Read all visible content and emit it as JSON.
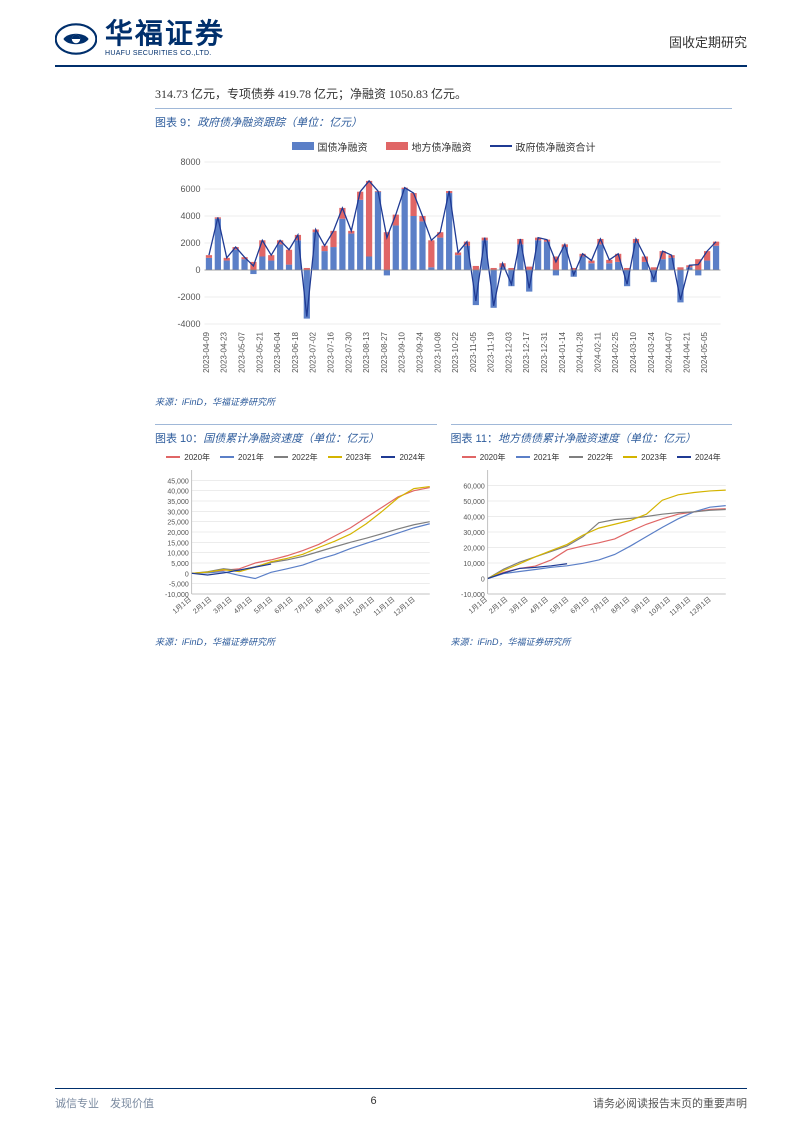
{
  "header": {
    "logo_cn": "华福证券",
    "logo_en": "HUAFU SECURITIES CO.,LTD.",
    "report_type": "固收定期研究"
  },
  "intro": "314.73 亿元，专项债券 419.78 亿元；净融资 1050.83 亿元。",
  "chart9": {
    "title_prefix": "图表 9：",
    "title": "政府债净融资跟踪（单位：亿元）",
    "legend": [
      {
        "label": "国债净融资",
        "color": "#5b7fc7",
        "type": "bar"
      },
      {
        "label": "地方债净融资",
        "color": "#e06666",
        "type": "bar"
      },
      {
        "label": "政府债净融资合计",
        "color": "#1f3a93",
        "type": "line"
      }
    ],
    "ylim": [
      -4000,
      8000
    ],
    "ytick_step": 2000,
    "yticks": [
      -4000,
      -2000,
      0,
      2000,
      4000,
      6000,
      8000
    ],
    "x_labels": [
      "2023-04-09",
      "2023-04-23",
      "2023-05-07",
      "2023-05-21",
      "2023-06-04",
      "2023-06-18",
      "2023-07-02",
      "2023-07-16",
      "2023-07-30",
      "2023-08-13",
      "2023-08-27",
      "2023-09-10",
      "2023-09-24",
      "2023-10-08",
      "2023-10-22",
      "2023-11-05",
      "2023-11-19",
      "2023-12-03",
      "2023-12-17",
      "2023-12-31",
      "2024-01-14",
      "2024-01-28",
      "2024-02-11",
      "2024-02-25",
      "2024-03-10",
      "2024-03-24",
      "2024-04-07",
      "2024-04-21",
      "2024-05-05"
    ],
    "series_a": [
      900,
      3800,
      700,
      1500,
      800,
      -300,
      1000,
      700,
      1900,
      400,
      2200,
      -3600,
      2800,
      1400,
      1700,
      3800,
      2700,
      5200,
      1000,
      5800,
      -400,
      3300,
      6000,
      4000,
      3600,
      200,
      2400,
      5700,
      1100,
      1800,
      -2600,
      2200,
      -2800,
      200,
      -1200,
      1900,
      -1600,
      2200,
      2100,
      -400,
      1700,
      -500,
      1000,
      500,
      1900,
      500,
      600,
      -1200,
      2000,
      600,
      -900,
      800,
      900,
      -2400,
      200,
      -400,
      700,
      1800
    ],
    "series_b": [
      200,
      100,
      200,
      200,
      150,
      600,
      1200,
      400,
      300,
      1100,
      400,
      150,
      200,
      400,
      1200,
      800,
      200,
      600,
      5600,
      50,
      2800,
      800,
      100,
      1700,
      400,
      2000,
      400,
      150,
      200,
      300,
      300,
      200,
      150,
      300,
      150,
      400,
      250,
      200,
      150,
      1000,
      200,
      150,
      200,
      200,
      400,
      250,
      600,
      150,
      300,
      400,
      200,
      600,
      200,
      200,
      150,
      800,
      700,
      300
    ],
    "grid_color": "#d9d9d9",
    "axis_color": "#666",
    "plot_bg": "#ffffff",
    "title_fontsize": 11,
    "tick_fontsize": 9
  },
  "chart10": {
    "title_prefix": "图表 10：",
    "title": "国债累计净融资速度（单位：亿元）",
    "ylim": [
      -10000,
      50000
    ],
    "ytick_step": 5000,
    "yticks": [
      -10000,
      -5000,
      0,
      5000,
      10000,
      15000,
      20000,
      25000,
      30000,
      35000,
      40000,
      45000
    ],
    "x_labels": [
      "1月1日",
      "2月1日",
      "3月1日",
      "4月1日",
      "5月1日",
      "6月1日",
      "7月1日",
      "8月1日",
      "9月1日",
      "10月1日",
      "11月1日",
      "12月1日"
    ],
    "legend": [
      {
        "label": "2020年",
        "color": "#e06666"
      },
      {
        "label": "2021年",
        "color": "#5b7fc7"
      },
      {
        "label": "2022年",
        "color": "#7f7f7f"
      },
      {
        "label": "2023年",
        "color": "#d4b400"
      },
      {
        "label": "2024年",
        "color": "#1f3a93"
      }
    ],
    "series": {
      "2020": [
        0,
        500,
        1500,
        2200,
        5000,
        6500,
        8500,
        11000,
        14000,
        18000,
        22000,
        27000,
        32000,
        37000,
        40000,
        41500
      ],
      "2021": [
        0,
        300,
        800,
        -1000,
        -2500,
        500,
        2200,
        4000,
        6800,
        9000,
        12000,
        14500,
        17000,
        19500,
        22000,
        24000
      ],
      "2022": [
        0,
        800,
        2200,
        1400,
        3200,
        5200,
        6500,
        8200,
        10500,
        12800,
        15000,
        17000,
        19200,
        21500,
        23500,
        25000
      ],
      "2023": [
        0,
        600,
        1800,
        800,
        3000,
        5600,
        7200,
        9200,
        12500,
        15500,
        19000,
        24000,
        30000,
        36500,
        41000,
        42000
      ],
      "2024": [
        0,
        -800,
        200,
        1600,
        3000,
        4500
      ]
    },
    "grid_color": "#d9d9d9"
  },
  "chart11": {
    "title_prefix": "图表 11：",
    "title": "地方债债累计净融资速度（单位：亿元）",
    "ylim": [
      -10000,
      70000
    ],
    "ytick_step": 10000,
    "yticks": [
      -10000,
      0,
      10000,
      20000,
      30000,
      40000,
      50000,
      60000
    ],
    "x_labels": [
      "1月1日",
      "2月1日",
      "3月1日",
      "4月1日",
      "5月1日",
      "6月1日",
      "7月1日",
      "8月1日",
      "9月1日",
      "10月1日",
      "11月1日",
      "12月1日"
    ],
    "legend": [
      {
        "label": "2020年",
        "color": "#e06666"
      },
      {
        "label": "2021年",
        "color": "#5b7fc7"
      },
      {
        "label": "2022年",
        "color": "#7f7f7f"
      },
      {
        "label": "2023年",
        "color": "#d4b400"
      },
      {
        "label": "2024年",
        "color": "#1f3a93"
      }
    ],
    "series": {
      "2020": [
        0,
        4000,
        6500,
        8000,
        12000,
        18500,
        21000,
        23000,
        25500,
        30500,
        35000,
        38500,
        41500,
        43000,
        44500,
        45000
      ],
      "2021": [
        0,
        3200,
        4500,
        5800,
        7200,
        8200,
        9800,
        12000,
        15500,
        21000,
        27000,
        33000,
        38500,
        43000,
        46000,
        47000
      ],
      "2022": [
        0,
        6000,
        10500,
        14000,
        17500,
        21000,
        27000,
        36000,
        38000,
        38800,
        40000,
        41500,
        42500,
        43000,
        44000,
        44500
      ],
      "2023": [
        0,
        5200,
        9500,
        14000,
        18000,
        22000,
        28000,
        32500,
        35000,
        37500,
        41500,
        50500,
        54000,
        55500,
        56500,
        57000
      ],
      "2024": [
        0,
        3500,
        6500,
        7200,
        8200,
        9500
      ]
    },
    "grid_color": "#d9d9d9"
  },
  "source": "来源：iFinD，华福证券研究所",
  "footer": {
    "left": "诚信专业　发现价值",
    "page": "6",
    "right": "请务必阅读报告末页的重要声明"
  },
  "colors": {
    "brand": "#002f6c",
    "title": "#2e5c9c"
  }
}
